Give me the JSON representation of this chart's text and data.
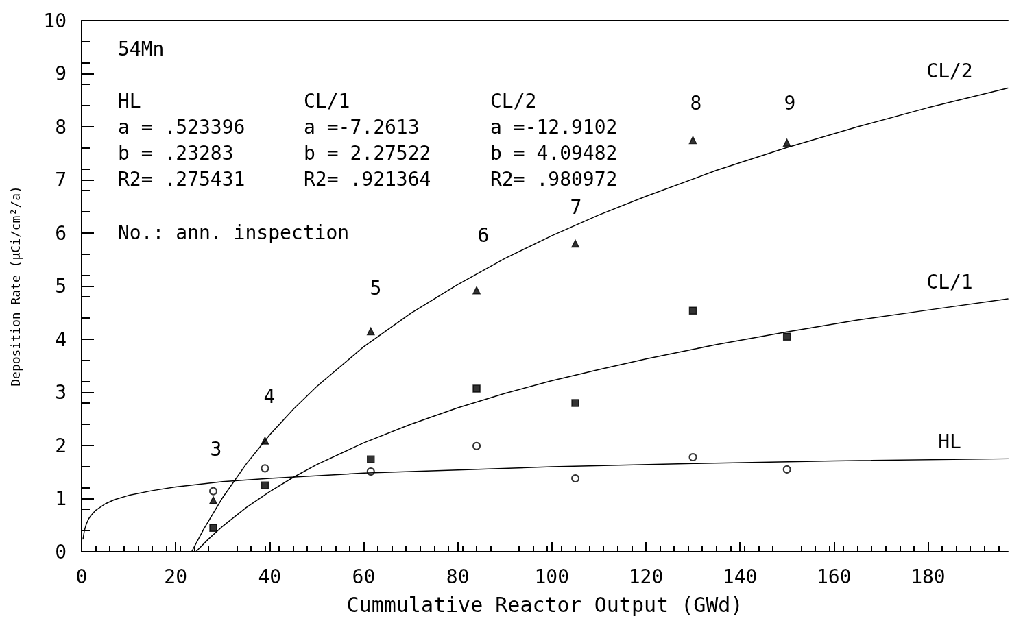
{
  "chart_data": {
    "type": "scatter",
    "xlabel": "Cummulative Reactor Output (GWd)",
    "ylabel": "Deposition Rate (μCi/cm²/a)",
    "xlim": [
      0,
      197
    ],
    "xticks": [
      0,
      20,
      40,
      60,
      80,
      100,
      120,
      140,
      160,
      180
    ],
    "ylim": [
      0,
      10
    ],
    "yticks": [
      0,
      1,
      2,
      3,
      4,
      5,
      6,
      7,
      8,
      9,
      10
    ],
    "grid": false,
    "legend": false,
    "series": [
      {
        "marker": "triangle",
        "color": "#000000",
        "x": [
          28,
          39,
          61.5,
          84,
          105,
          130,
          150
        ],
        "values": [
          0.97,
          2.09,
          4.15,
          4.92,
          5.8,
          7.75,
          7.7
        ]
      },
      {
        "marker": "square",
        "color": "#000000",
        "x": [
          28,
          39,
          61.5,
          84,
          105,
          130,
          150
        ],
        "values": [
          0.45,
          1.25,
          1.74,
          3.07,
          2.8,
          4.54,
          4.05
        ]
      },
      {
        "marker": "circle",
        "color": "#000000",
        "x": [
          28,
          39,
          61.5,
          84,
          105,
          130,
          150
        ],
        "values": [
          1.14,
          1.57,
          1.51,
          1.99,
          1.38,
          1.78,
          1.55
        ]
      },
      {
        "type": "line",
        "name": "CL/2",
        "marker": "none",
        "color": "#000000",
        "x": [
          23.4,
          26,
          30,
          35,
          40,
          45,
          50,
          60,
          70,
          80,
          90,
          100,
          110,
          120,
          135,
          150,
          165,
          180,
          197
        ],
        "values": [
          0,
          0.43,
          1.02,
          1.65,
          2.2,
          2.68,
          3.11,
          3.86,
          4.49,
          5.03,
          5.52,
          5.95,
          6.34,
          6.69,
          7.18,
          7.61,
          8.0,
          8.36,
          8.73
        ]
      },
      {
        "type": "line",
        "name": "CL/1",
        "marker": "none",
        "color": "#000000",
        "x": [
          24.3,
          27,
          30,
          35,
          40,
          45,
          50,
          60,
          70,
          80,
          90,
          100,
          110,
          120,
          135,
          150,
          165,
          180,
          197
        ],
        "values": [
          0,
          0.24,
          0.48,
          0.83,
          1.13,
          1.4,
          1.64,
          2.05,
          2.4,
          2.71,
          2.98,
          3.22,
          3.43,
          3.63,
          3.9,
          4.14,
          4.36,
          4.55,
          4.76
        ]
      },
      {
        "type": "line",
        "name": "HL",
        "marker": "none",
        "color": "#000000",
        "x": [
          0.3,
          0.6,
          1,
          1.5,
          2,
          3,
          5,
          7,
          10,
          15,
          20,
          30,
          40,
          60,
          80,
          100,
          130,
          160,
          197
        ],
        "values": [
          0.24,
          0.4,
          0.52,
          0.62,
          0.68,
          0.78,
          0.9,
          0.98,
          1.06,
          1.15,
          1.22,
          1.32,
          1.38,
          1.48,
          1.54,
          1.6,
          1.66,
          1.71,
          1.75
        ]
      }
    ],
    "annotations": [
      "54Mn",
      "HL\na = .523396\nb = .23283\nR2= .275431",
      "CL/1\na =-7.2613\nb = 2.27522\nR2= .921364",
      "CL/2\na =-12.9102\nb = 4.09482\nR2= .980972",
      "No.: ann. inspection",
      "3",
      "4",
      "5",
      "6",
      "7",
      "8",
      "9"
    ]
  }
}
